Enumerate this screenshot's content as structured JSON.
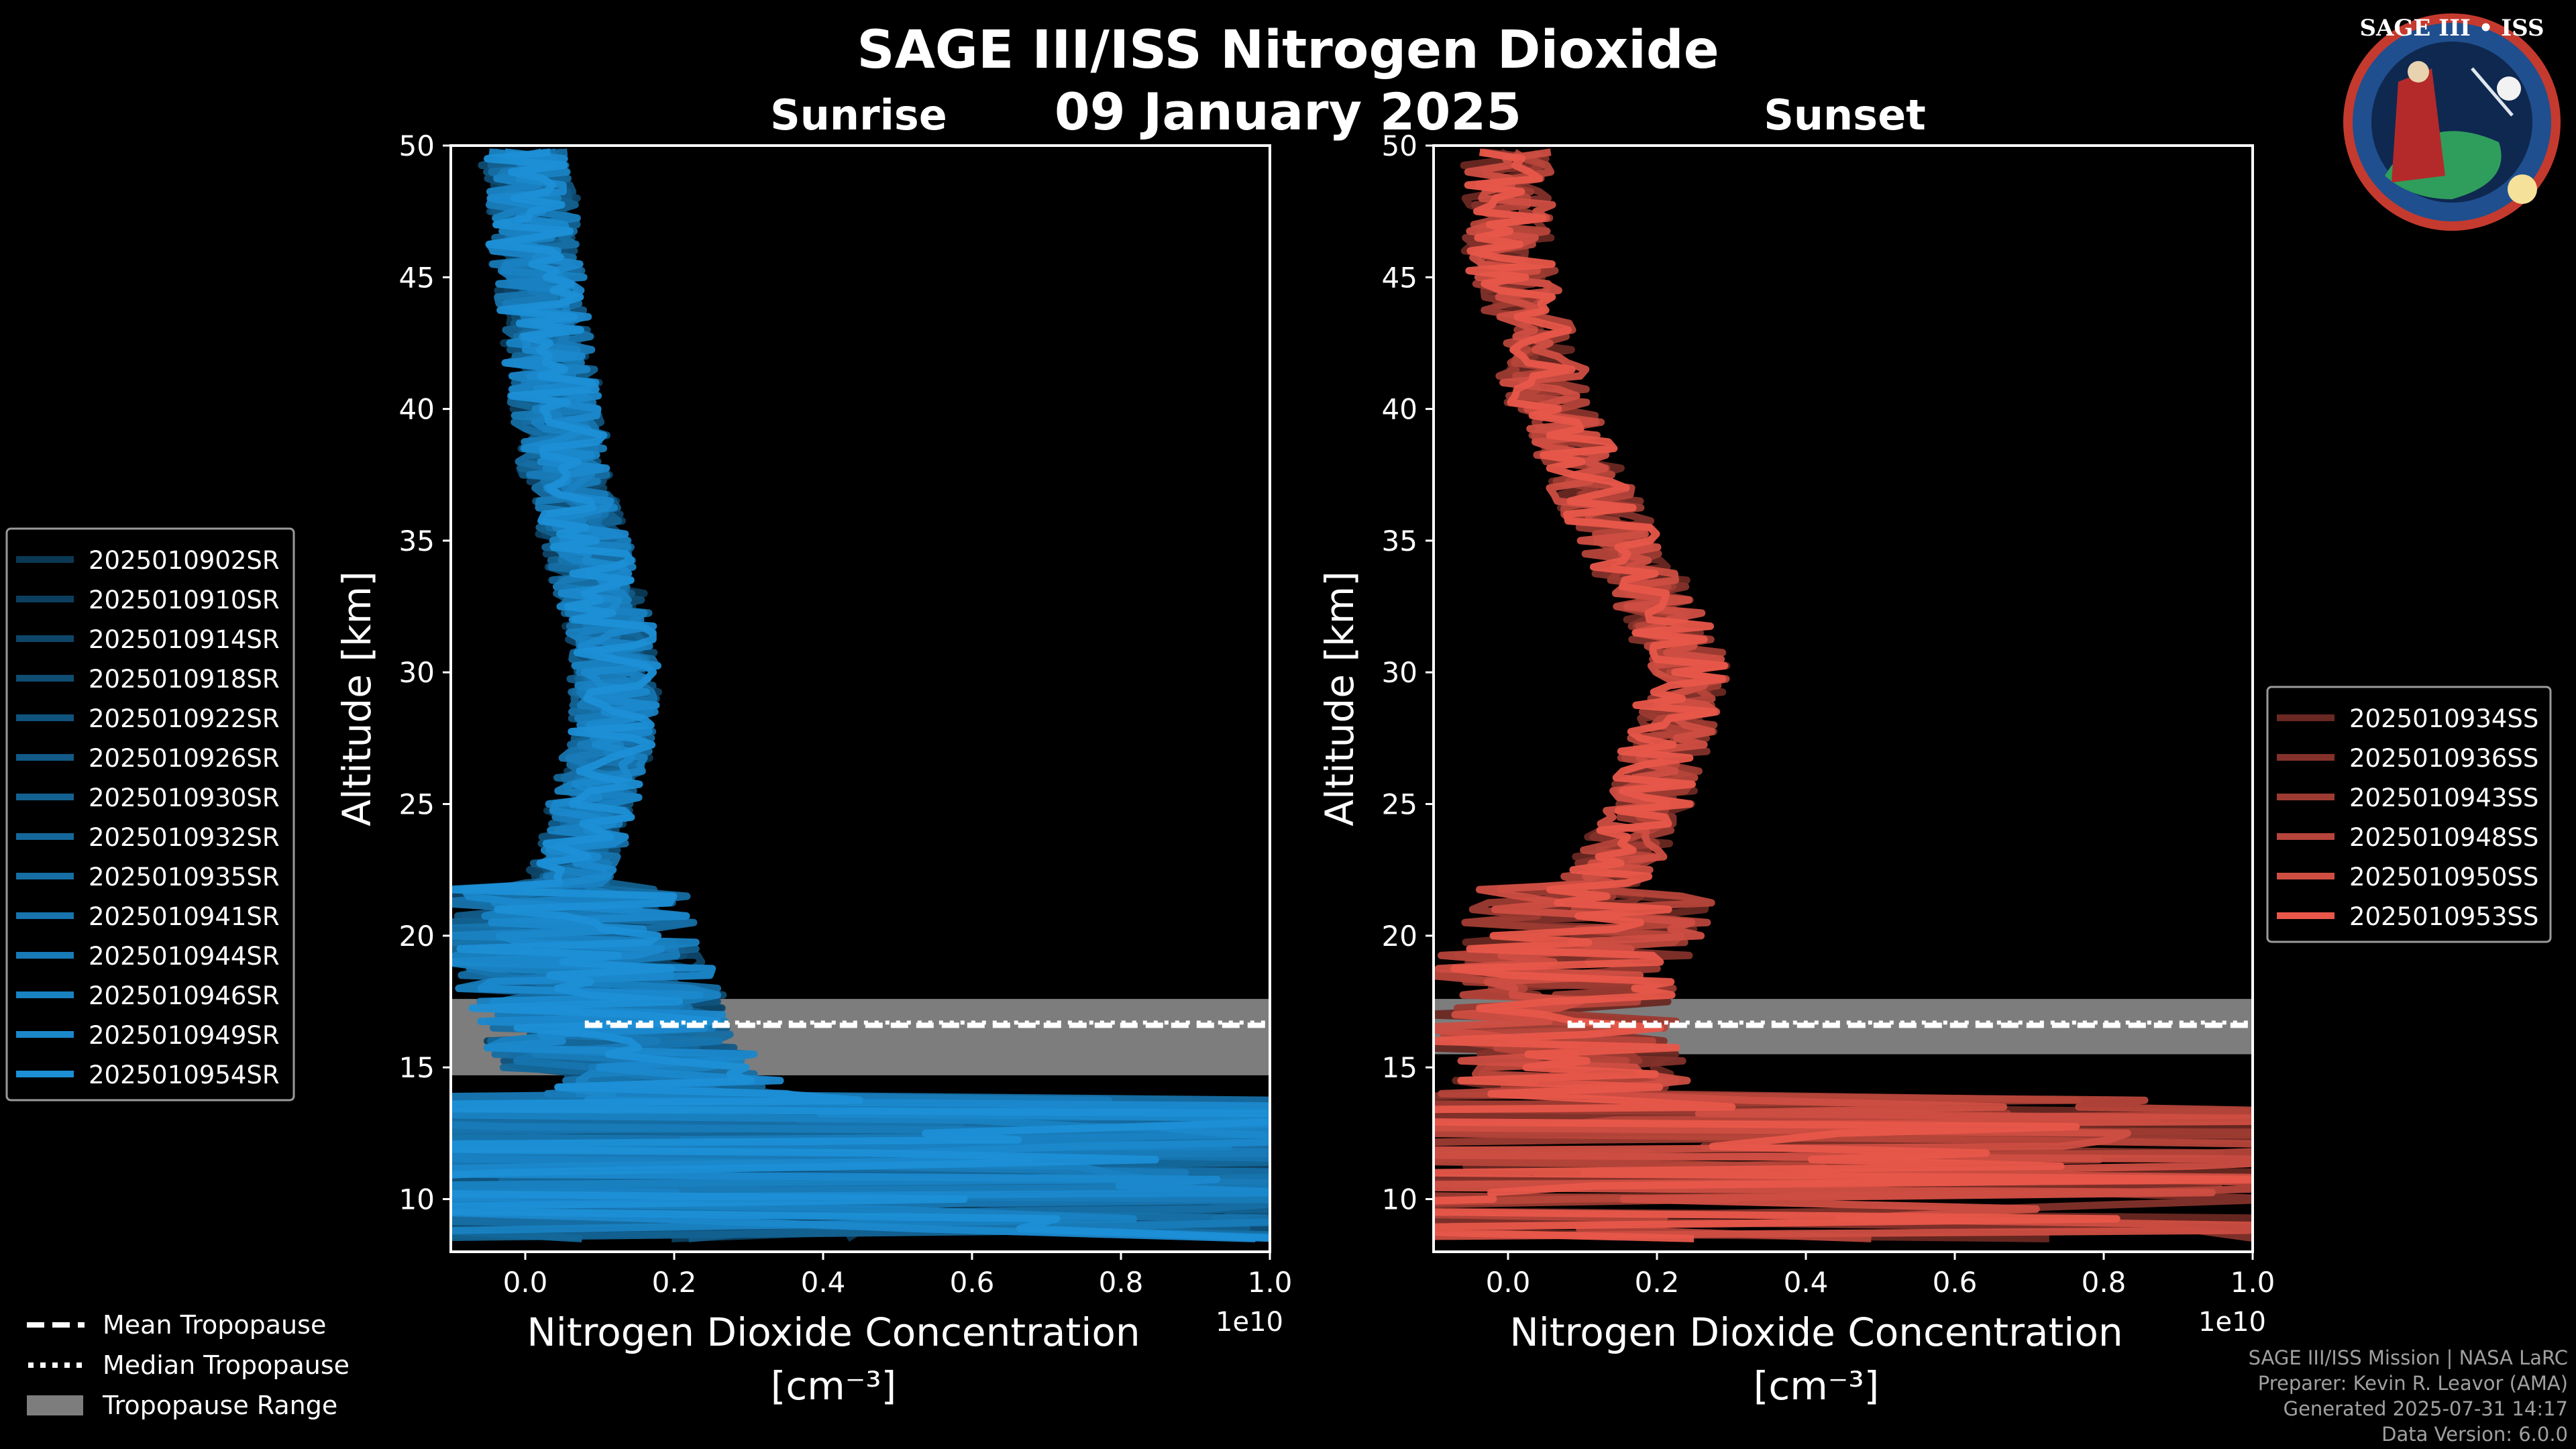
{
  "figure": {
    "title": "SAGE III/ISS Nitrogen Dioxide",
    "date": "09 January 2025",
    "logo_text": "SAGE III • ISS",
    "footer": [
      "SAGE III/ISS Mission | NASA LaRC",
      "Preparer: Kevin R. Leavor (AMA)",
      "Generated 2025-07-31 14:17",
      "Data Version: 6.0.0"
    ]
  },
  "chart_data": [
    {
      "type": "line",
      "title": "Sunrise",
      "xlabel": "Nitrogen Dioxide Concentration",
      "xunit": "[cm⁻³]",
      "ylabel": "Altitude [km]",
      "x_multiplier": "1e10",
      "xlim": [
        -0.1,
        1.0
      ],
      "ylim": [
        8,
        50
      ],
      "xticks": [
        "0.0",
        "0.2",
        "0.4",
        "0.6",
        "0.8",
        "1.0"
      ],
      "yticks": [
        "10",
        "15",
        "20",
        "25",
        "30",
        "35",
        "40",
        "45",
        "50"
      ],
      "tropopause": {
        "mean": 16.6,
        "median": 16.7,
        "range": [
          14.7,
          17.6
        ]
      },
      "series_color": "#1c8fd6",
      "series": [
        {
          "name": "2025010902SR"
        },
        {
          "name": "2025010910SR"
        },
        {
          "name": "2025010914SR"
        },
        {
          "name": "2025010918SR"
        },
        {
          "name": "2025010922SR"
        },
        {
          "name": "2025010926SR"
        },
        {
          "name": "2025010930SR"
        },
        {
          "name": "2025010932SR"
        },
        {
          "name": "2025010935SR"
        },
        {
          "name": "2025010941SR"
        },
        {
          "name": "2025010944SR"
        },
        {
          "name": "2025010946SR"
        },
        {
          "name": "2025010949SR"
        },
        {
          "name": "2025010954SR"
        }
      ],
      "profile_mean": [
        [
          8.5,
          0.15
        ],
        [
          10,
          0.4
        ],
        [
          11,
          0.35
        ],
        [
          12,
          0.3
        ],
        [
          13,
          0.25
        ],
        [
          14,
          0.2
        ],
        [
          15,
          0.15
        ],
        [
          16,
          0.12
        ],
        [
          17,
          0.1
        ],
        [
          18,
          0.09
        ],
        [
          19,
          0.07
        ],
        [
          20,
          0.05
        ],
        [
          21,
          0.05
        ],
        [
          22,
          0.06
        ],
        [
          23,
          0.07
        ],
        [
          24,
          0.08
        ],
        [
          25,
          0.09
        ],
        [
          26,
          0.1
        ],
        [
          27,
          0.11
        ],
        [
          28,
          0.12
        ],
        [
          29,
          0.12
        ],
        [
          30,
          0.12
        ],
        [
          31,
          0.12
        ],
        [
          32,
          0.11
        ],
        [
          33,
          0.1
        ],
        [
          34,
          0.09
        ],
        [
          35,
          0.08
        ],
        [
          36,
          0.07
        ],
        [
          37,
          0.06
        ],
        [
          38,
          0.05
        ],
        [
          39,
          0.05
        ],
        [
          40,
          0.04
        ],
        [
          41,
          0.04
        ],
        [
          42,
          0.03
        ],
        [
          43,
          0.03
        ],
        [
          44,
          0.02
        ],
        [
          45,
          0.02
        ],
        [
          46,
          0.01
        ],
        [
          47,
          0.01
        ],
        [
          48,
          0.01
        ],
        [
          49,
          0.0
        ],
        [
          50,
          0.0
        ]
      ]
    },
    {
      "type": "line",
      "title": "Sunset",
      "xlabel": "Nitrogen Dioxide Concentration",
      "xunit": "[cm⁻³]",
      "ylabel": "Altitude [km]",
      "x_multiplier": "1e10",
      "xlim": [
        -0.1,
        1.0
      ],
      "ylim": [
        8,
        50
      ],
      "xticks": [
        "0.0",
        "0.2",
        "0.4",
        "0.6",
        "0.8",
        "1.0"
      ],
      "yticks": [
        "10",
        "15",
        "20",
        "25",
        "30",
        "35",
        "40",
        "45",
        "50"
      ],
      "tropopause": {
        "mean": 16.6,
        "median": 16.7,
        "range": [
          15.5,
          17.6
        ]
      },
      "series_color": "#e8574a",
      "series": [
        {
          "name": "2025010934SS"
        },
        {
          "name": "2025010936SS"
        },
        {
          "name": "2025010943SS"
        },
        {
          "name": "2025010948SS"
        },
        {
          "name": "2025010950SS"
        },
        {
          "name": "2025010953SS"
        }
      ],
      "profile_mean": [
        [
          8.5,
          0.2
        ],
        [
          10,
          0.4
        ],
        [
          11,
          0.3
        ],
        [
          12,
          0.2
        ],
        [
          13,
          0.12
        ],
        [
          14,
          0.08
        ],
        [
          15,
          0.06
        ],
        [
          16,
          0.05
        ],
        [
          17,
          0.05
        ],
        [
          18,
          0.05
        ],
        [
          19,
          0.06
        ],
        [
          20,
          0.08
        ],
        [
          21,
          0.1
        ],
        [
          22,
          0.13
        ],
        [
          23,
          0.15
        ],
        [
          24,
          0.17
        ],
        [
          25,
          0.19
        ],
        [
          26,
          0.2
        ],
        [
          27,
          0.21
        ],
        [
          28,
          0.22
        ],
        [
          29,
          0.23
        ],
        [
          30,
          0.24
        ],
        [
          31,
          0.23
        ],
        [
          32,
          0.21
        ],
        [
          33,
          0.19
        ],
        [
          34,
          0.17
        ],
        [
          35,
          0.15
        ],
        [
          36,
          0.13
        ],
        [
          37,
          0.11
        ],
        [
          38,
          0.09
        ],
        [
          39,
          0.08
        ],
        [
          40,
          0.06
        ],
        [
          41,
          0.05
        ],
        [
          42,
          0.04
        ],
        [
          43,
          0.03
        ],
        [
          44,
          0.02
        ],
        [
          45,
          0.01
        ],
        [
          46,
          0.0
        ],
        [
          47,
          0.0
        ],
        [
          48,
          0.0
        ],
        [
          49,
          0.0
        ],
        [
          50,
          0.0
        ]
      ]
    }
  ],
  "bottom_legend": [
    {
      "label": "Mean Tropopause",
      "style": "dashed"
    },
    {
      "label": "Median Tropopause",
      "style": "dotted"
    },
    {
      "label": "Tropopause Range",
      "style": "patch"
    }
  ]
}
